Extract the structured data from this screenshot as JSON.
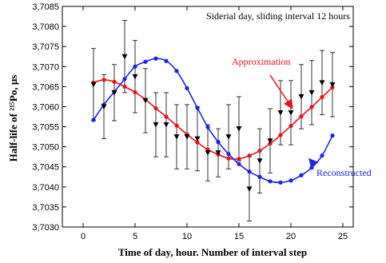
{
  "chart_data": {
    "type": "line",
    "title": "Siderial day, sliding interval 12 hours",
    "xlabel": "Time of day, hour. Number of interval step",
    "ylabel": "Half-life of ²¹⁵Po, μs",
    "xlim": [
      -2,
      26
    ],
    "ylim": [
      3.703,
      3.7085
    ],
    "x_ticks": [
      0,
      5,
      10,
      15,
      20,
      25
    ],
    "x_tick_labels": [
      "0",
      "5",
      "10",
      "15",
      "20",
      "25"
    ],
    "y_ticks": [
      3.703,
      3.7035,
      3.704,
      3.7045,
      3.705,
      3.7055,
      3.706,
      3.7065,
      3.707,
      3.7075,
      3.708,
      3.7085
    ],
    "y_tick_labels": [
      "3,7030",
      "3,7035",
      "3,7040",
      "3,7045",
      "3,7050",
      "3,7055",
      "3,7060",
      "3,7065",
      "3,7070",
      "3,7075",
      "3,7080",
      "3,7085"
    ],
    "grid": false,
    "series": [
      {
        "name": "Approximation",
        "color": "#e8101a",
        "x": [
          1,
          2,
          3,
          4,
          5,
          6,
          7,
          8,
          9,
          10,
          11,
          12,
          13,
          14,
          15,
          16,
          17,
          18,
          19,
          20,
          21,
          22,
          23,
          24
        ],
        "y": [
          3.7066,
          3.70667,
          3.70662,
          3.7065,
          3.70636,
          3.70618,
          3.70596,
          3.70575,
          3.70553,
          3.70531,
          3.70511,
          3.70493,
          3.70481,
          3.70471,
          3.7047,
          3.70478,
          3.7049,
          3.70508,
          3.70529,
          3.70552,
          3.70576,
          3.70599,
          3.70624,
          3.70648
        ]
      },
      {
        "name": "Reconstructed",
        "color": "#1a22e8",
        "x": [
          1,
          2,
          3,
          4,
          5,
          6,
          7,
          8,
          9,
          10,
          11,
          12,
          13,
          14,
          15,
          16,
          17,
          18,
          19,
          20,
          21,
          22,
          23,
          24
        ],
        "y": [
          3.70567,
          3.70605,
          3.70637,
          3.70669,
          3.707,
          3.70712,
          3.7072,
          3.70714,
          3.70689,
          3.70646,
          3.70597,
          3.70549,
          3.70512,
          3.70482,
          3.70457,
          3.70438,
          3.70425,
          3.70414,
          3.70411,
          3.70416,
          3.70429,
          3.70448,
          3.70478,
          3.70528
        ]
      },
      {
        "name": "",
        "color": "#000000",
        "marker": "triangle-down",
        "x": [
          1,
          2,
          3,
          4,
          5,
          6,
          7,
          8,
          9,
          10,
          11,
          12,
          13,
          14,
          15,
          16,
          17,
          18,
          19,
          20,
          21,
          22,
          23,
          24
        ],
        "y": [
          3.70655,
          3.706,
          3.70635,
          3.70725,
          3.70675,
          3.70615,
          3.70555,
          3.70555,
          3.70525,
          3.70525,
          3.7052,
          3.70485,
          3.70485,
          3.70525,
          3.70545,
          3.70395,
          3.70465,
          3.70515,
          3.70585,
          3.70585,
          3.70625,
          3.70635,
          3.7066,
          3.70655
        ],
        "error": [
          0.0009,
          0.0008,
          0.0007,
          0.0009,
          0.0009,
          0.0008,
          0.0008,
          0.0008,
          0.0008,
          0.0008,
          0.0008,
          0.0007,
          0.0006,
          0.0008,
          0.0008,
          0.0008,
          0.0008,
          0.0008,
          0.0008,
          0.0008,
          0.0008,
          0.0008,
          0.0008,
          0.0008
        ]
      }
    ],
    "annotations": [
      {
        "text": "Approximation",
        "color": "#e8101a"
      },
      {
        "text": "Reconstructed",
        "color": "#1a22e8"
      }
    ]
  }
}
